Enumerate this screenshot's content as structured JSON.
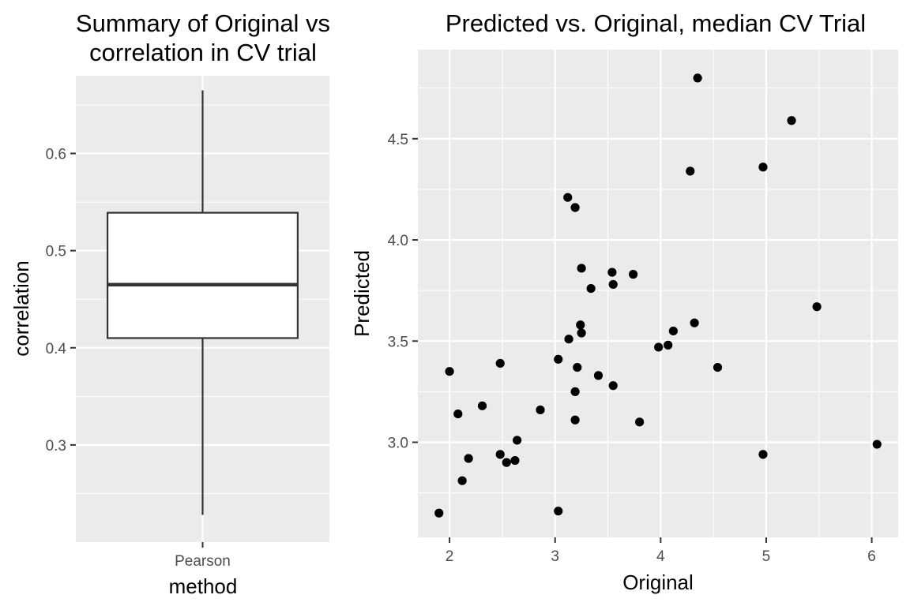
{
  "chart_data": [
    {
      "type": "boxplot",
      "title_lines": [
        "Summary of Original vs",
        "correlation in CV trial"
      ],
      "xlabel": "method",
      "ylabel": "correlation",
      "categories": [
        "Pearson"
      ],
      "ylim": [
        0.2,
        0.68
      ],
      "yticks": [
        0.3,
        0.4,
        0.5,
        0.6
      ],
      "grid": true,
      "colors": {
        "panel": "#ebebeb",
        "grid": "#ffffff",
        "box_fill": "#ffffff",
        "box_line": "#333333",
        "tick_text": "#4d4d4d"
      },
      "boxes": [
        {
          "category": "Pearson",
          "whisker_low": 0.228,
          "q1": 0.41,
          "median": 0.465,
          "q3": 0.539,
          "whisker_high": 0.665
        }
      ]
    },
    {
      "type": "scatter",
      "title": "Predicted vs. Original, median CV Trial",
      "xlabel": "Original",
      "ylabel": "Predicted",
      "xlim": [
        1.7,
        6.25
      ],
      "ylim": [
        2.53,
        4.94
      ],
      "xticks": [
        2,
        3,
        4,
        5,
        6
      ],
      "yticks": [
        3.0,
        3.5,
        4.0,
        4.5
      ],
      "grid": true,
      "colors": {
        "panel": "#ebebeb",
        "grid": "#ffffff",
        "point": "#000000",
        "tick_text": "#4d4d4d"
      },
      "points": [
        [
          1.9,
          2.65
        ],
        [
          2.0,
          3.35
        ],
        [
          2.08,
          3.14
        ],
        [
          2.12,
          2.81
        ],
        [
          2.18,
          2.92
        ],
        [
          2.31,
          3.18
        ],
        [
          2.48,
          2.94
        ],
        [
          2.48,
          3.39
        ],
        [
          2.54,
          2.9
        ],
        [
          2.62,
          2.91
        ],
        [
          2.64,
          3.01
        ],
        [
          2.86,
          3.16
        ],
        [
          3.03,
          3.41
        ],
        [
          3.03,
          2.66
        ],
        [
          3.12,
          4.21
        ],
        [
          3.13,
          3.51
        ],
        [
          3.19,
          4.16
        ],
        [
          3.19,
          3.11
        ],
        [
          3.19,
          3.25
        ],
        [
          3.21,
          3.37
        ],
        [
          3.24,
          3.58
        ],
        [
          3.25,
          3.54
        ],
        [
          3.25,
          3.86
        ],
        [
          3.34,
          3.76
        ],
        [
          3.41,
          3.33
        ],
        [
          3.54,
          3.84
        ],
        [
          3.55,
          3.78
        ],
        [
          3.55,
          3.28
        ],
        [
          3.74,
          3.83
        ],
        [
          3.8,
          3.1
        ],
        [
          3.98,
          3.47
        ],
        [
          4.07,
          3.48
        ],
        [
          4.12,
          3.55
        ],
        [
          4.28,
          4.34
        ],
        [
          4.32,
          3.59
        ],
        [
          4.35,
          4.8
        ],
        [
          4.54,
          3.37
        ],
        [
          4.97,
          4.36
        ],
        [
          4.97,
          2.94
        ],
        [
          5.24,
          4.59
        ],
        [
          5.48,
          3.67
        ],
        [
          6.05,
          2.99
        ]
      ]
    }
  ]
}
